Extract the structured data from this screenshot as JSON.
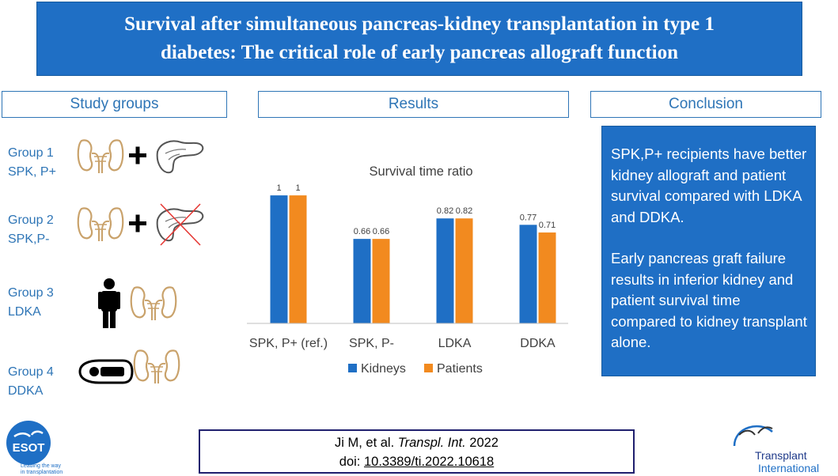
{
  "title": {
    "line1": "Survival after simultaneous pancreas-kidney transplantation in type 1",
    "line2": "diabetes: The critical role of early pancreas allograft function"
  },
  "sections": {
    "study_groups": "Study groups",
    "results": "Results",
    "conclusion": "Conclusion"
  },
  "groups": [
    {
      "name": "Group 1",
      "code": "SPK, P+",
      "icons": [
        "kidney-icon",
        "plus-icon",
        "pancreas-icon"
      ]
    },
    {
      "name": "Group 2",
      "code": "SPK,P-",
      "icons": [
        "kidney-icon",
        "plus-icon",
        "crossed-pancreas-icon"
      ]
    },
    {
      "name": "Group 3",
      "code": "LDKA",
      "icons": [
        "person-icon",
        "kidney-icon"
      ]
    },
    {
      "name": "Group 4",
      "code": "DDKA",
      "icons": [
        "deceased-donor-icon",
        "kidney-icon"
      ]
    }
  ],
  "chart_data": {
    "type": "bar",
    "title": "Survival time ratio",
    "categories": [
      "SPK, P+ (ref.)",
      "SPK, P-",
      "LDKA",
      "DDKA"
    ],
    "series": [
      {
        "name": "Kidneys",
        "values": [
          1,
          0.66,
          0.82,
          0.77
        ],
        "color": "#1f6fc5"
      },
      {
        "name": "Patients",
        "values": [
          1,
          0.66,
          0.82,
          0.71
        ],
        "color": "#f28a1f"
      }
    ],
    "ylim": [
      0,
      1.05
    ],
    "grid": false,
    "legend_position": "bottom"
  },
  "conclusion": {
    "paragraph1": "SPK,P+ recipients have better kidney allograft and patient survival compared with LDKA and DDKA.",
    "paragraph2": "Early pancreas graft failure results in inferior kidney and patient survival time compared to kidney transplant alone."
  },
  "citation": {
    "authors": "Ji M, et al. ",
    "journal": "Transpl. Int.",
    "year": " 2022",
    "doi_prefix": "doi: ",
    "doi": "10.3389/ti.2022.10618"
  },
  "logos": {
    "esot_name": "ESOT",
    "esot_tagline1": "Leading the way",
    "esot_tagline2": "in transplantation",
    "ti_line1": "Transplant",
    "ti_line2": "International"
  },
  "colors": {
    "header_blue": "#1f6fc5",
    "accent_blue": "#2e75b6",
    "orange": "#f28a1f",
    "kidney_tan": "#c9a26b"
  }
}
